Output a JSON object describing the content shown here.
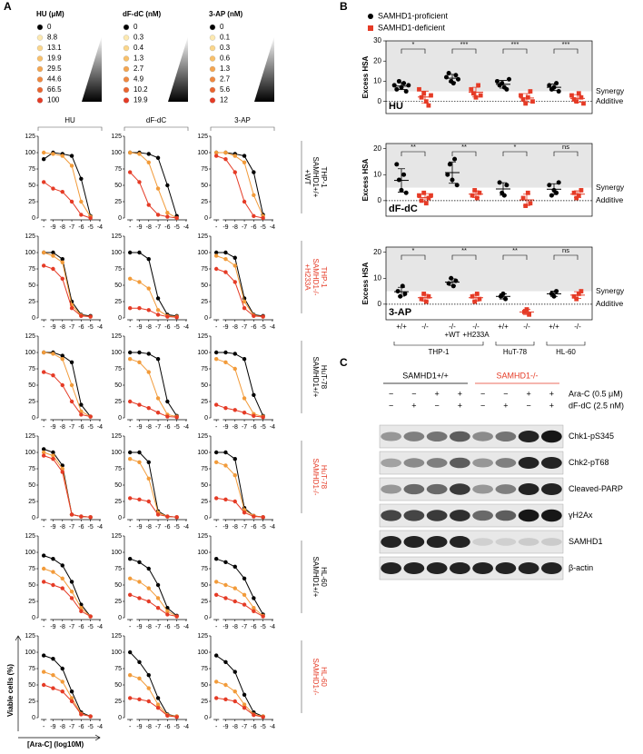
{
  "panel_a": {
    "label": "A",
    "legends": [
      {
        "title": "HU (μM)",
        "items": [
          "0",
          "8.8",
          "13.1",
          "19.9",
          "29.5",
          "44.6",
          "66.5",
          "100"
        ]
      },
      {
        "title": "dF-dC (nM)",
        "items": [
          "0",
          "0.3",
          "0.4",
          "1.3",
          "2.7",
          "4.9",
          "10.2",
          "19.9"
        ]
      },
      {
        "title": "3-AP (nM)",
        "items": [
          "0",
          "0.1",
          "0.3",
          "0.6",
          "1.3",
          "2.7",
          "5.6",
          "12"
        ]
      }
    ],
    "marker_colors": [
      "#000000",
      "#fde9b0",
      "#fbd68a",
      "#f8c06a",
      "#f4a550",
      "#ef8840",
      "#ea6530",
      "#e53b26"
    ],
    "column_titles": [
      "HU",
      "dF-dC",
      "3-AP"
    ],
    "curve_colors": [
      "#000000",
      "#f29b3a",
      "#e53b26"
    ],
    "x_points": [
      -10,
      -9,
      -8,
      -7,
      -6,
      -5
    ],
    "xlim": [
      -10.6,
      -3.8
    ],
    "xticks": [
      {
        "value": -10,
        "label": "-"
      },
      -9,
      -8,
      -7,
      -6,
      -5,
      -4
    ],
    "ylim": [
      0,
      125
    ],
    "yticks": [
      0,
      25,
      50,
      75,
      100,
      125
    ],
    "y_label": "Viable cells (%)",
    "x_label": "[Ara-C] (log10M)",
    "rows": [
      {
        "label_lines": [
          "THP-1",
          "SAMHD1+/+",
          "+WT"
        ],
        "label_color": "#000000",
        "plots": [
          [
            [
              90,
              100,
              98,
              95,
              60,
              3
            ],
            [
              100,
              98,
              95,
              80,
              25,
              2
            ],
            [
              55,
              45,
              40,
              25,
              5,
              0
            ]
          ],
          [
            [
              100,
              100,
              98,
              92,
              50,
              3
            ],
            [
              100,
              98,
              85,
              45,
              8,
              0
            ],
            [
              70,
              55,
              20,
              5,
              2,
              0
            ]
          ],
          [
            [
              100,
              100,
              98,
              95,
              70,
              5
            ],
            [
              100,
              100,
              95,
              85,
              35,
              3
            ],
            [
              95,
              90,
              70,
              25,
              3,
              0
            ]
          ]
        ]
      },
      {
        "label_lines": [
          "THP-1",
          "SAMHD1-/-",
          "+H233A"
        ],
        "label_color": "#e53b26",
        "plots": [
          [
            [
              100,
              100,
              90,
              25,
              5,
              3
            ],
            [
              100,
              95,
              85,
              20,
              4,
              2
            ],
            [
              80,
              75,
              60,
              15,
              3,
              2
            ]
          ],
          [
            [
              100,
              100,
              90,
              30,
              5,
              3
            ],
            [
              60,
              55,
              45,
              12,
              3,
              2
            ],
            [
              15,
              15,
              12,
              5,
              2,
              1
            ]
          ],
          [
            [
              100,
              100,
              92,
              30,
              5,
              3
            ],
            [
              95,
              90,
              80,
              25,
              4,
              2
            ],
            [
              75,
              70,
              55,
              15,
              3,
              2
            ]
          ]
        ]
      },
      {
        "label_lines": [
          "HuT-78",
          "SAMHD1+/+"
        ],
        "label_color": "#000000",
        "plots": [
          [
            [
              100,
              100,
              95,
              85,
              20,
              2
            ],
            [
              100,
              98,
              90,
              50,
              10,
              2
            ],
            [
              70,
              65,
              50,
              25,
              5,
              2
            ]
          ],
          [
            [
              100,
              100,
              98,
              90,
              25,
              3
            ],
            [
              90,
              85,
              70,
              30,
              5,
              2
            ],
            [
              25,
              20,
              15,
              8,
              2,
              1
            ]
          ],
          [
            [
              100,
              100,
              98,
              90,
              35,
              3
            ],
            [
              90,
              85,
              75,
              30,
              6,
              2
            ],
            [
              20,
              15,
              12,
              8,
              3,
              1
            ]
          ]
        ]
      },
      {
        "label_lines": [
          "HuT-78",
          "SAMHD1-/-"
        ],
        "label_color": "#e53b26",
        "plots": [
          [
            [
              105,
              100,
              80,
              5,
              2,
              1
            ],
            [
              100,
              95,
              75,
              5,
              2,
              1
            ],
            [
              95,
              90,
              70,
              5,
              2,
              1
            ]
          ],
          [
            [
              100,
              100,
              85,
              10,
              2,
              1
            ],
            [
              90,
              85,
              60,
              8,
              2,
              1
            ],
            [
              30,
              28,
              25,
              5,
              2,
              1
            ]
          ],
          [
            [
              100,
              100,
              90,
              15,
              3,
              1
            ],
            [
              85,
              80,
              65,
              12,
              3,
              1
            ],
            [
              30,
              28,
              25,
              8,
              2,
              1
            ]
          ]
        ]
      },
      {
        "label_lines": [
          "HL-60",
          "SAMHD1+/+"
        ],
        "label_color": "#000000",
        "plots": [
          [
            [
              95,
              90,
              80,
              55,
              20,
              2
            ],
            [
              75,
              70,
              60,
              40,
              15,
              2
            ],
            [
              55,
              50,
              45,
              30,
              10,
              2
            ]
          ],
          [
            [
              90,
              85,
              75,
              50,
              15,
              3
            ],
            [
              60,
              55,
              45,
              30,
              10,
              2
            ],
            [
              35,
              30,
              25,
              15,
              5,
              2
            ]
          ],
          [
            [
              90,
              85,
              78,
              60,
              30,
              5
            ],
            [
              55,
              50,
              45,
              35,
              15,
              3
            ],
            [
              35,
              30,
              25,
              20,
              10,
              2
            ]
          ]
        ]
      },
      {
        "label_lines": [
          "HL-60",
          "SAMHD1-/-"
        ],
        "label_color": "#e53b26",
        "plots": [
          [
            [
              95,
              90,
              75,
              40,
              8,
              2
            ],
            [
              70,
              65,
              55,
              30,
              6,
              2
            ],
            [
              50,
              45,
              40,
              25,
              5,
              2
            ]
          ],
          [
            [
              100,
              85,
              65,
              30,
              5,
              2
            ],
            [
              65,
              60,
              45,
              20,
              4,
              2
            ],
            [
              30,
              28,
              25,
              15,
              3,
              1
            ]
          ],
          [
            [
              95,
              85,
              70,
              35,
              8,
              2
            ],
            [
              55,
              50,
              40,
              20,
              5,
              2
            ],
            [
              30,
              28,
              25,
              15,
              4,
              1
            ]
          ]
        ]
      }
    ]
  },
  "panel_b": {
    "label": "B",
    "legend": [
      {
        "name": "SAMHD1-proficient",
        "color": "#000000"
      },
      {
        "name": "SAMHD1-deficient",
        "color": "#e53b26"
      }
    ],
    "y_label": "Excess HSA",
    "synergy_label": "Synergy",
    "additive_label": "Additive",
    "synergy_threshold": 5,
    "x_labels": [
      [
        "+/+"
      ],
      [
        "-/-"
      ],
      [
        "-/-",
        "+WT"
      ],
      [
        "-/-",
        "+H233A"
      ],
      [
        "+/+"
      ],
      [
        "-/-"
      ],
      [
        "+/+"
      ],
      [
        "-/-"
      ]
    ],
    "cell_lines": [
      "THP-1",
      "HuT-78",
      "HL-60"
    ],
    "plots": [
      {
        "name": "HU",
        "ylim": [
          -6,
          30
        ],
        "yticks": [
          0,
          10,
          20,
          30
        ],
        "significance": [
          "*",
          "***",
          "***",
          "***"
        ],
        "groups": [
          {
            "points": [
              8,
              6,
              10,
              7,
              9,
              5,
              8
            ],
            "mean": 7.6,
            "sd": 1.7
          },
          {
            "points": [
              6,
              2,
              4,
              0,
              -2,
              3
            ],
            "mean": 2.2,
            "sd": 2.9
          },
          {
            "points": [
              12,
              14,
              10,
              9,
              13,
              11
            ],
            "mean": 11.5,
            "sd": 1.9
          },
          {
            "points": [
              6,
              4,
              2,
              8,
              3
            ],
            "mean": 4.6,
            "sd": 2.4
          },
          {
            "points": [
              10,
              8,
              9,
              7,
              6,
              11
            ],
            "mean": 8.5,
            "sd": 1.9
          },
          {
            "points": [
              3,
              1,
              -1,
              2,
              5,
              0
            ],
            "mean": 1.7,
            "sd": 2.2
          },
          {
            "points": [
              8,
              6,
              7,
              9,
              5
            ],
            "mean": 7,
            "sd": 1.6
          },
          {
            "points": [
              3,
              1,
              0,
              4,
              2,
              -1
            ],
            "mean": 1.5,
            "sd": 1.9
          }
        ]
      },
      {
        "name": "dF-dC",
        "ylim": [
          -6,
          22
        ],
        "yticks": [
          0,
          10,
          20
        ],
        "significance": [
          "**",
          "**",
          "*",
          "ns"
        ],
        "groups": [
          {
            "points": [
              14,
              8,
              4,
              10,
              3
            ],
            "mean": 7.8,
            "sd": 4.5
          },
          {
            "points": [
              2,
              0,
              3,
              -1,
              1,
              2
            ],
            "mean": 1.2,
            "sd": 1.5
          },
          {
            "points": [
              10,
              14,
              8,
              16,
              6
            ],
            "mean": 10.8,
            "sd": 4.1
          },
          {
            "points": [
              2,
              4,
              1,
              3
            ],
            "mean": 2.5,
            "sd": 1.3
          },
          {
            "points": [
              7,
              3,
              2,
              6
            ],
            "mean": 4.5,
            "sd": 2.4
          },
          {
            "points": [
              1,
              -2,
              3,
              -1
            ],
            "mean": 0.3,
            "sd": 2.2
          },
          {
            "points": [
              6,
              2,
              4,
              3,
              7
            ],
            "mean": 4.4,
            "sd": 2.1
          },
          {
            "points": [
              3,
              1,
              2,
              4
            ],
            "mean": 2.5,
            "sd": 1.3
          }
        ]
      },
      {
        "name": "3-AP",
        "ylim": [
          -6,
          22
        ],
        "yticks": [
          0,
          10,
          20
        ],
        "significance": [
          "*",
          "**",
          "**",
          "ns"
        ],
        "groups": [
          {
            "points": [
              5,
              3,
              7,
              4
            ],
            "mean": 4.8,
            "sd": 1.7
          },
          {
            "points": [
              2,
              4,
              1,
              3
            ],
            "mean": 2.5,
            "sd": 1.3
          },
          {
            "points": [
              8,
              10,
              7,
              9
            ],
            "mean": 8.5,
            "sd": 1.3
          },
          {
            "points": [
              3,
              1,
              4,
              2
            ],
            "mean": 2.5,
            "sd": 1.3
          },
          {
            "points": [
              3,
              4,
              2
            ],
            "mean": 3,
            "sd": 1
          },
          {
            "points": [
              -3,
              -2,
              -4
            ],
            "mean": -3,
            "sd": 1
          },
          {
            "points": [
              4,
              3,
              5
            ],
            "mean": 4,
            "sd": 1
          },
          {
            "points": [
              3,
              2,
              4,
              5
            ],
            "mean": 3.5,
            "sd": 1.3
          }
        ]
      }
    ]
  },
  "panel_c": {
    "label": "C",
    "headers": [
      {
        "text": "SAMHD1+/+",
        "color": "#000000"
      },
      {
        "text": "SAMHD1-/-",
        "color": "#e53b26"
      }
    ],
    "treatments": [
      {
        "name": "Ara-C (0.5 μM)",
        "signs": [
          "−",
          "−",
          "+",
          "+",
          "−",
          "−",
          "+",
          "+"
        ]
      },
      {
        "name": "dF-dC (2.5 nM)",
        "signs": [
          "−",
          "+",
          "−",
          "+",
          "−",
          "+",
          "−",
          "+"
        ]
      }
    ],
    "blots": [
      "Chk1-pS345",
      "Chk2-pT68",
      "Cleaved-PARP",
      "γH2Ax",
      "SAMHD1",
      "β-actin"
    ]
  }
}
